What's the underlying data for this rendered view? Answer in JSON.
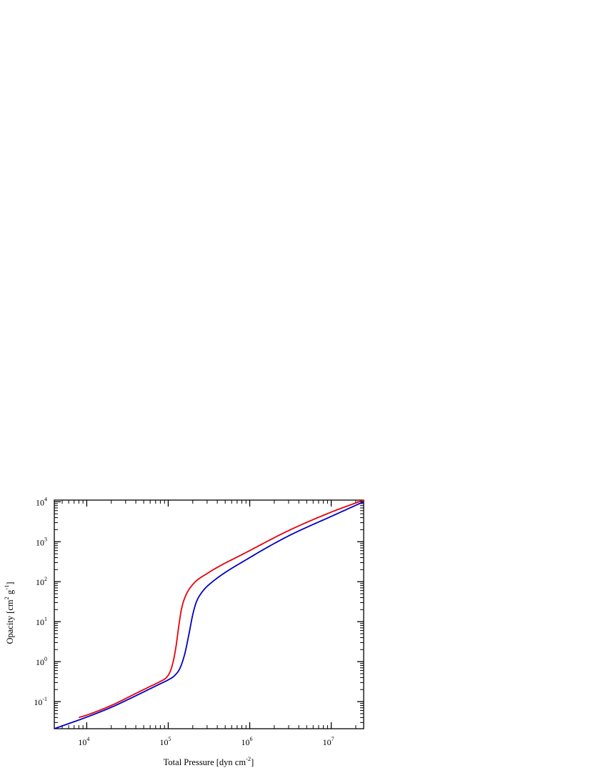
{
  "chart_data": {
    "type": "line",
    "xlabel": {
      "text": "Total Pressure [dyn cm",
      "sup": "-2",
      "tail": "]"
    },
    "ylabel": {
      "parts": [
        {
          "text": "Opacity [cm",
          "sup": ""
        },
        {
          "text": "",
          "sup": "2"
        },
        {
          "text": " g",
          "sup": ""
        },
        {
          "text": "",
          "sup": "-1"
        },
        {
          "text": "]",
          "sup": ""
        }
      ]
    },
    "x_scale": "log",
    "y_scale": "log",
    "xlim": [
      4000,
      25000000
    ],
    "ylim": [
      0.021,
      11000
    ],
    "x_ticks": [
      {
        "base": "10",
        "exp": "4",
        "value": 10000
      },
      {
        "base": "10",
        "exp": "5",
        "value": 100000
      },
      {
        "base": "10",
        "exp": "6",
        "value": 1000000
      },
      {
        "base": "10",
        "exp": "7",
        "value": 10000000
      }
    ],
    "y_ticks": [
      {
        "base": "10",
        "exp": "-1",
        "value": 0.1
      },
      {
        "base": "10",
        "exp": "0",
        "value": 1
      },
      {
        "base": "10",
        "exp": "1",
        "value": 10
      },
      {
        "base": "10",
        "exp": "2",
        "value": 100
      },
      {
        "base": "10",
        "exp": "3",
        "value": 1000
      },
      {
        "base": "10",
        "exp": "4",
        "value": 10000
      }
    ],
    "grid": false,
    "legend": "none",
    "series": [
      {
        "color": "#e8000b",
        "x": [
          8000,
          10000,
          20000,
          40000,
          60000,
          80000,
          95000,
          105000,
          115000,
          125000,
          135000,
          145000,
          160000,
          200000,
          300000,
          1000000,
          3000000,
          10000000,
          25000000
        ],
        "y": [
          0.04,
          0.046,
          0.08,
          0.16,
          0.24,
          0.32,
          0.4,
          0.55,
          1.0,
          2.5,
          8.0,
          20.0,
          40.0,
          85.0,
          160.0,
          600.0,
          1900.0,
          5500.0,
          11000.0
        ]
      },
      {
        "color": "#0000c8",
        "x": [
          4000,
          10000,
          20000,
          40000,
          60000,
          80000,
          100000,
          120000,
          140000,
          160000,
          180000,
          200000,
          220000,
          260000,
          350000,
          1000000,
          3000000,
          10000000,
          25000000
        ],
        "y": [
          0.021,
          0.041,
          0.072,
          0.14,
          0.21,
          0.28,
          0.35,
          0.45,
          0.7,
          1.6,
          5.0,
          15.0,
          30.0,
          55.0,
          100.0,
          400.0,
          1400.0,
          4300.0,
          10000.0
        ]
      }
    ]
  }
}
